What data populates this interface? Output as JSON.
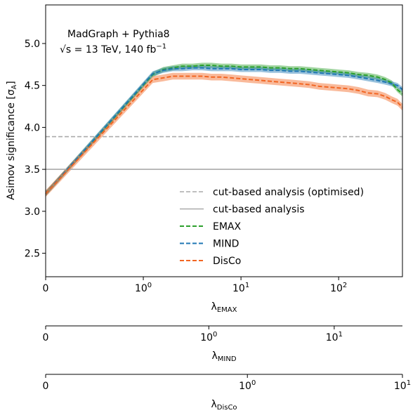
{
  "chart_data": {
    "type": "line",
    "annotations": [
      "MadGraph + Pythia8",
      "√s = 13 TeV, 140 fb⁻¹"
    ],
    "annotation_line2": {
      "sqrt": "√s",
      "rest": " = 13 TeV, 140 fb",
      "sup": "−1"
    },
    "ylabel": {
      "main": "Asimov significance [σ",
      "sub": "A",
      "close": "]"
    },
    "ylim": [
      2.22,
      5.46
    ],
    "yticks": [
      2.5,
      3.0,
      3.5,
      4.0,
      4.5,
      5.0
    ],
    "ytick_labels": [
      "2.5",
      "3.0",
      "3.5",
      "4.0",
      "4.5",
      "5.0"
    ],
    "grid": false,
    "legend_position": "lower-right",
    "x_axes": [
      {
        "label": "λ",
        "sub": "EMAX",
        "scale": "symlog",
        "linthresh": 1,
        "range": [
          0,
          450
        ],
        "ticks": [
          {
            "value": 0,
            "base": "0",
            "exp": ""
          },
          {
            "value": 1,
            "base": "10",
            "exp": "0"
          },
          {
            "value": 10,
            "base": "10",
            "exp": "1"
          },
          {
            "value": 100,
            "base": "10",
            "exp": "2"
          }
        ]
      },
      {
        "label": "λ",
        "sub": "MIND",
        "scale": "symlog",
        "linthresh": 0.5,
        "range": [
          0,
          35
        ],
        "ticks": [
          {
            "value": 0,
            "base": "0",
            "exp": ""
          },
          {
            "value": 1,
            "base": "10",
            "exp": "0"
          },
          {
            "value": 10,
            "base": "10",
            "exp": "1"
          }
        ]
      },
      {
        "label": "λ",
        "sub": "DisCo",
        "scale": "symlog",
        "linthresh": 0.5,
        "range": [
          0,
          10
        ],
        "ticks": [
          {
            "value": 0,
            "base": "0",
            "exp": ""
          },
          {
            "value": 1,
            "base": "10",
            "exp": "0"
          },
          {
            "value": 10,
            "base": "10",
            "exp": "1"
          }
        ]
      }
    ],
    "reference_lines": [
      {
        "name": "cut-based analysis (optimised)",
        "y": 3.89,
        "color": "#aaaaaa",
        "style": "dashed"
      },
      {
        "name": "cut-based analysis",
        "y": 3.5,
        "color": "#aaaaaa",
        "style": "solid"
      }
    ],
    "series": [
      {
        "name": "EMAX",
        "color": "#2ca02c",
        "style": "dashed",
        "x": [
          0,
          1.25,
          1.6,
          2,
          2.5,
          3.2,
          4,
          5,
          6.3,
          8,
          10,
          12.6,
          16,
          20,
          25,
          32,
          40,
          50,
          63,
          80,
          100,
          126,
          160,
          200,
          250,
          300,
          350,
          400,
          450
        ],
        "y": [
          3.21,
          4.63,
          4.69,
          4.71,
          4.73,
          4.73,
          4.74,
          4.74,
          4.73,
          4.73,
          4.72,
          4.72,
          4.72,
          4.71,
          4.71,
          4.7,
          4.7,
          4.69,
          4.68,
          4.67,
          4.66,
          4.65,
          4.63,
          4.62,
          4.6,
          4.57,
          4.53,
          4.45,
          4.4
        ],
        "band": 0.03
      },
      {
        "name": "MIND",
        "color": "#1f77b4",
        "style": "dashed",
        "x": [
          0,
          1.25,
          1.6,
          2,
          2.5,
          3.2,
          4,
          5,
          6.3,
          8,
          10,
          12.6,
          16,
          20,
          25,
          32,
          40,
          50,
          63,
          80,
          100,
          126,
          160,
          200,
          250,
          300,
          350,
          400,
          450
        ],
        "y": [
          3.21,
          4.64,
          4.68,
          4.7,
          4.7,
          4.71,
          4.71,
          4.7,
          4.7,
          4.7,
          4.69,
          4.69,
          4.69,
          4.68,
          4.68,
          4.67,
          4.67,
          4.66,
          4.65,
          4.64,
          4.63,
          4.62,
          4.6,
          4.58,
          4.56,
          4.54,
          4.52,
          4.5,
          4.45
        ],
        "band": 0.03
      },
      {
        "name": "DisCo",
        "color": "#f26522",
        "style": "dashed",
        "x": [
          0,
          1.25,
          1.6,
          2,
          2.5,
          3.2,
          4,
          5,
          6.3,
          8,
          10,
          12.6,
          16,
          20,
          25,
          32,
          40,
          50,
          63,
          80,
          100,
          126,
          160,
          200,
          250,
          300,
          350,
          400,
          450
        ],
        "y": [
          3.21,
          4.57,
          4.59,
          4.61,
          4.61,
          4.61,
          4.61,
          4.6,
          4.6,
          4.59,
          4.58,
          4.57,
          4.56,
          4.55,
          4.54,
          4.53,
          4.52,
          4.51,
          4.49,
          4.48,
          4.47,
          4.46,
          4.44,
          4.41,
          4.4,
          4.37,
          4.33,
          4.3,
          4.24
        ],
        "band": 0.04
      }
    ]
  }
}
